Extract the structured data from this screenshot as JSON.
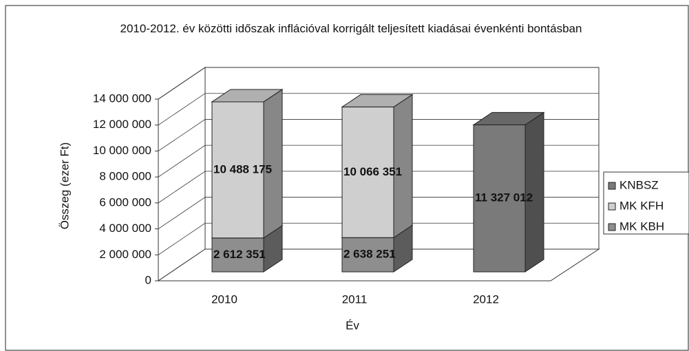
{
  "chart_data": {
    "type": "bar3d-stacked",
    "title": "2010-2012. év közötti időszak inflációval korrigált teljesített kiadásai évenkénti bontásban",
    "x_label": "Év",
    "y_label": "Összeg (ezer Ft)",
    "categories": [
      "2010",
      "2011",
      "2012"
    ],
    "series": [
      {
        "name": "KNBSZ",
        "color": "#7a7a7a",
        "values": [
          null,
          null,
          11327012
        ],
        "value_labels": [
          null,
          null,
          "11 327 012"
        ]
      },
      {
        "name": "MK KFH",
        "color": "#cfcfcf",
        "values": [
          10488175,
          10066351,
          null
        ],
        "value_labels": [
          "10 488 175",
          "10 066 351",
          null
        ]
      },
      {
        "name": "MK KBH",
        "color": "#8e8e8e",
        "values": [
          2612351,
          2638251,
          null
        ],
        "value_labels": [
          "2 612 351",
          "2 638 251",
          null
        ]
      }
    ],
    "ylim": [
      0,
      14000000
    ],
    "yticks": [
      0,
      {
        "value": 2000000,
        "label": "2 000 000"
      },
      {
        "value": 4000000,
        "label": "4 000 000"
      },
      {
        "value": 6000000,
        "label": "6 000 000"
      },
      {
        "value": 8000000,
        "label": "8 000 000"
      },
      {
        "value": 10000000,
        "label": "10 000 000"
      },
      {
        "value": 12000000,
        "label": "12 000 000"
      },
      {
        "value": 14000000,
        "label": "14 000 000"
      }
    ],
    "grid": true,
    "legend": "right"
  }
}
